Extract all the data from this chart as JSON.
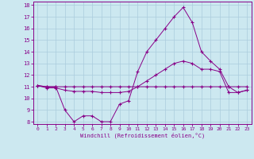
{
  "xlabel": "Windchill (Refroidissement éolien,°C)",
  "background_color": "#cce8f0",
  "grid_color": "#aaccdd",
  "line_color": "#880088",
  "xlim": [
    -0.5,
    23.5
  ],
  "ylim": [
    7.8,
    18.3
  ],
  "yticks": [
    8,
    9,
    10,
    11,
    12,
    13,
    14,
    15,
    16,
    17,
    18
  ],
  "xticks": [
    0,
    1,
    2,
    3,
    4,
    5,
    6,
    7,
    8,
    9,
    10,
    11,
    12,
    13,
    14,
    15,
    16,
    17,
    18,
    19,
    20,
    21,
    22,
    23
  ],
  "line1": {
    "x": [
      0,
      1,
      2,
      3,
      4,
      5,
      6,
      7,
      8,
      9,
      10,
      11,
      12,
      13,
      14,
      15,
      16,
      17,
      18,
      19,
      20,
      21,
      22,
      23
    ],
    "y": [
      11.1,
      11.0,
      11.0,
      9.0,
      8.0,
      8.5,
      8.5,
      8.0,
      8.0,
      9.5,
      9.8,
      12.3,
      14.0,
      15.0,
      16.0,
      17.0,
      17.8,
      16.5,
      14.0,
      13.2,
      12.5,
      11.0,
      10.5,
      10.7
    ]
  },
  "line2": {
    "x": [
      0,
      1,
      2,
      3,
      4,
      5,
      6,
      7,
      8,
      9,
      10,
      11,
      12,
      13,
      14,
      15,
      16,
      17,
      18,
      19,
      20,
      21,
      22,
      23
    ],
    "y": [
      11.1,
      11.0,
      11.0,
      11.0,
      11.0,
      11.0,
      11.0,
      11.0,
      11.0,
      11.0,
      11.0,
      11.0,
      11.0,
      11.0,
      11.0,
      11.0,
      11.0,
      11.0,
      11.0,
      11.0,
      11.0,
      11.0,
      11.0,
      11.0
    ]
  },
  "line3": {
    "x": [
      0,
      1,
      2,
      3,
      4,
      5,
      6,
      7,
      8,
      9,
      10,
      11,
      12,
      13,
      14,
      15,
      16,
      17,
      18,
      19,
      20,
      21,
      22,
      23
    ],
    "y": [
      11.1,
      10.9,
      10.9,
      10.7,
      10.6,
      10.6,
      10.6,
      10.5,
      10.5,
      10.5,
      10.6,
      11.0,
      11.5,
      12.0,
      12.5,
      13.0,
      13.2,
      13.0,
      12.5,
      12.5,
      12.3,
      10.5,
      10.5,
      10.7
    ]
  }
}
